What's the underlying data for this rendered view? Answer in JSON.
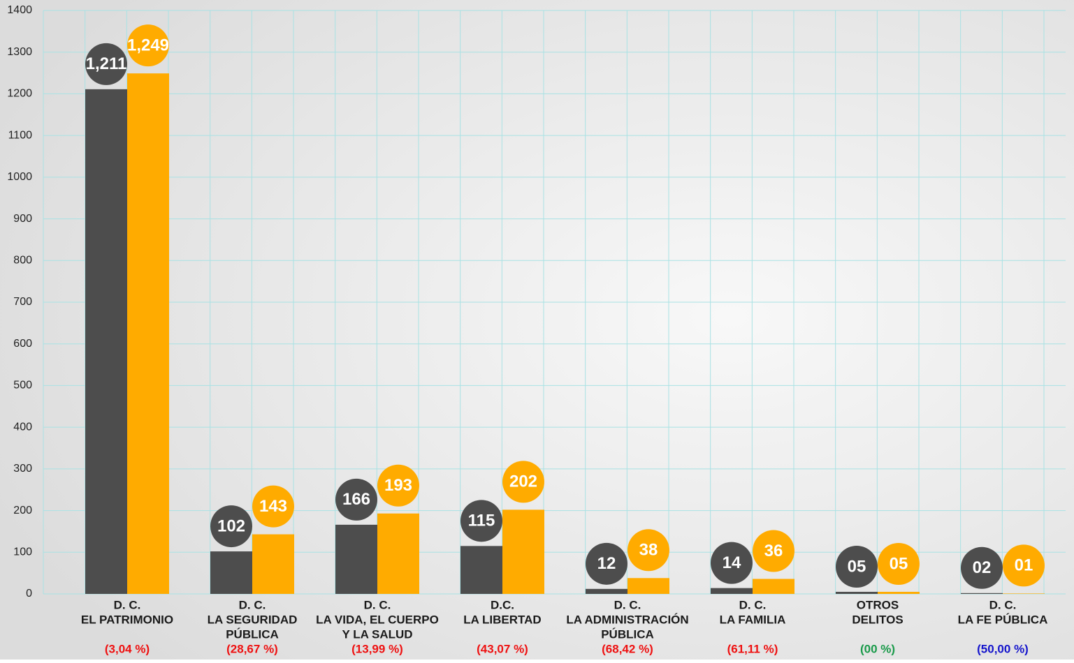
{
  "chart_data": {
    "type": "bar",
    "categories": [
      [
        "D. C.",
        "EL PATRIMONIO"
      ],
      [
        "D. C.",
        "LA SEGURIDAD",
        "PÚBLICA"
      ],
      [
        "D. C.",
        "LA VIDA, EL CUERPO",
        "Y LA SALUD"
      ],
      [
        "D.C.",
        "LA LIBERTAD"
      ],
      [
        "D. C.",
        "LA ADMINISTRACIÓN",
        "PÚBLICA"
      ],
      [
        "D. C.",
        "LA FAMILIA"
      ],
      [
        "OTROS",
        "DELITOS"
      ],
      [
        "D. C.",
        "LA FE PÚBLICA"
      ]
    ],
    "series": [
      {
        "color": "#4d4d4d",
        "values": [
          1211,
          102,
          166,
          115,
          12,
          14,
          5,
          2
        ],
        "value_labels": [
          "1,211",
          "102",
          "166",
          "115",
          "12",
          "14",
          "05",
          "02"
        ]
      },
      {
        "color": "#ffab00",
        "values": [
          1249,
          143,
          193,
          202,
          38,
          36,
          5,
          1
        ],
        "value_labels": [
          "1,249",
          "143",
          "193",
          "202",
          "38",
          "36",
          "05",
          "01"
        ]
      }
    ],
    "annotations": [
      {
        "text": "(3,04 %)",
        "color": "#ee1111"
      },
      {
        "text": "(28,67 %)",
        "color": "#ee1111"
      },
      {
        "text": "(13,99 %)",
        "color": "#ee1111"
      },
      {
        "text": "(43,07 %)",
        "color": "#ee1111"
      },
      {
        "text": "(68,42 %)",
        "color": "#ee1111"
      },
      {
        "text": "(61,11 %)",
        "color": "#ee1111"
      },
      {
        "text": "(00 %)",
        "color": "#1a9a4a"
      },
      {
        "text": "(50,00 %)",
        "color": "#1515cc"
      }
    ],
    "ylim": [
      0,
      1400
    ],
    "yticks": [
      0,
      100,
      200,
      300,
      400,
      500,
      600,
      700,
      800,
      900,
      1000,
      1100,
      1200,
      1300,
      1400
    ],
    "grid": true
  }
}
